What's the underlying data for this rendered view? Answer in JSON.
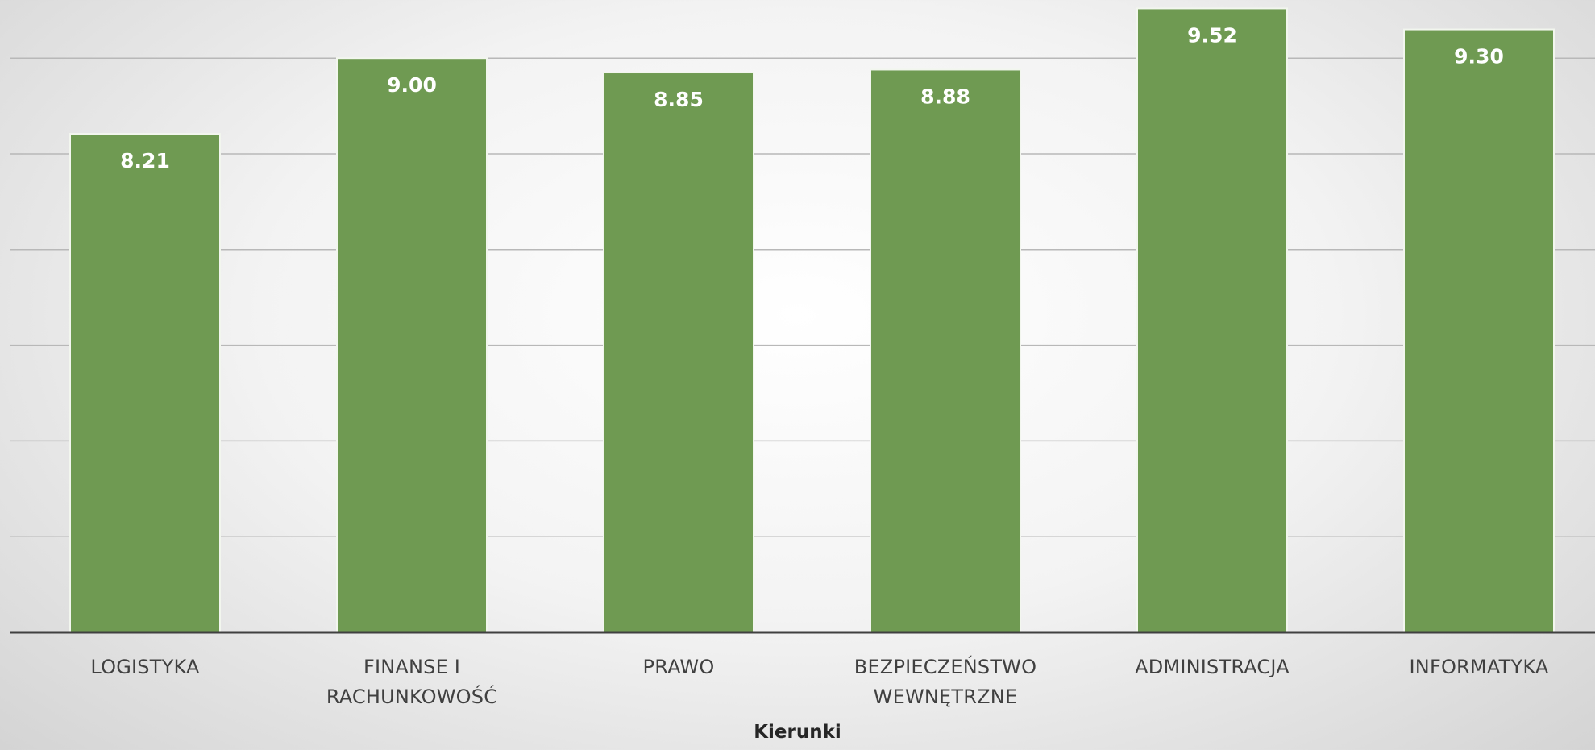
{
  "chart_data": {
    "type": "bar",
    "categories": [
      [
        "LOGISTYKA"
      ],
      [
        "FINANSE I",
        "RACHUNKOWOŚĆ"
      ],
      [
        "PRAWO"
      ],
      [
        "BEZPIECZEŃSTWO",
        "WEWNĘTRZNE"
      ],
      [
        "ADMINISTRACJA"
      ],
      [
        "INFORMATYKA"
      ]
    ],
    "values": [
      8.21,
      9.0,
      8.85,
      8.88,
      9.52,
      9.3
    ],
    "data_labels": [
      "8.21",
      "9.00",
      "8.85",
      "8.88",
      "9.52",
      "9.30"
    ],
    "xlabel": "Kierunki",
    "ylim": [
      3.0,
      9.67
    ],
    "gridlines": [
      4,
      5,
      6,
      7,
      8,
      9
    ],
    "grid": true,
    "legend": "none",
    "colors": {
      "bar": "#6f9a52",
      "bar_border": "#f2f6ee",
      "grid": "#b8b8b8",
      "axis": "#404040"
    }
  }
}
